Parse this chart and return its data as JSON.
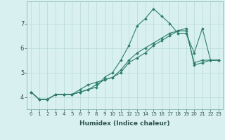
{
  "xlabel": "Humidex (Indice chaleur)",
  "ylabel": "",
  "x": [
    0,
    1,
    2,
    3,
    4,
    5,
    6,
    7,
    8,
    9,
    10,
    11,
    12,
    13,
    14,
    15,
    16,
    17,
    18,
    19,
    20,
    21,
    22,
    23
  ],
  "line1": [
    4.2,
    3.9,
    3.9,
    4.1,
    4.1,
    4.1,
    4.2,
    4.3,
    4.4,
    4.8,
    5.0,
    5.5,
    6.1,
    6.9,
    7.2,
    7.6,
    7.3,
    7.0,
    6.6,
    6.6,
    5.8,
    6.8,
    5.5,
    5.5
  ],
  "line2": [
    4.2,
    3.9,
    3.9,
    4.1,
    4.1,
    4.1,
    4.2,
    4.3,
    4.5,
    4.7,
    4.8,
    5.1,
    5.5,
    5.8,
    6.0,
    6.2,
    6.4,
    6.6,
    6.7,
    6.7,
    5.4,
    5.5,
    5.5,
    5.5
  ],
  "line3": [
    4.2,
    3.9,
    3.9,
    4.1,
    4.1,
    4.1,
    4.3,
    4.5,
    4.6,
    4.7,
    4.8,
    5.0,
    5.4,
    5.6,
    5.8,
    6.1,
    6.3,
    6.5,
    6.7,
    6.8,
    5.3,
    5.4,
    5.5,
    5.5
  ],
  "line_color": "#2e7d6e",
  "bg_color": "#d8f0f0",
  "grid_color": "#b8d8d8",
  "ylim": [
    3.5,
    7.9
  ],
  "xlim": [
    -0.5,
    23.5
  ],
  "yticks": [
    4,
    5,
    6,
    7
  ],
  "xticks": [
    0,
    1,
    2,
    3,
    4,
    5,
    6,
    7,
    8,
    9,
    10,
    11,
    12,
    13,
    14,
    15,
    16,
    17,
    18,
    19,
    20,
    21,
    22,
    23
  ],
  "marker": "D",
  "markersize": 1.8,
  "linewidth": 0.8,
  "xlabel_fontsize": 6.5,
  "xlabel_fontweight": "bold",
  "tick_fontsize": 5.0,
  "ytick_fontsize": 6.0
}
